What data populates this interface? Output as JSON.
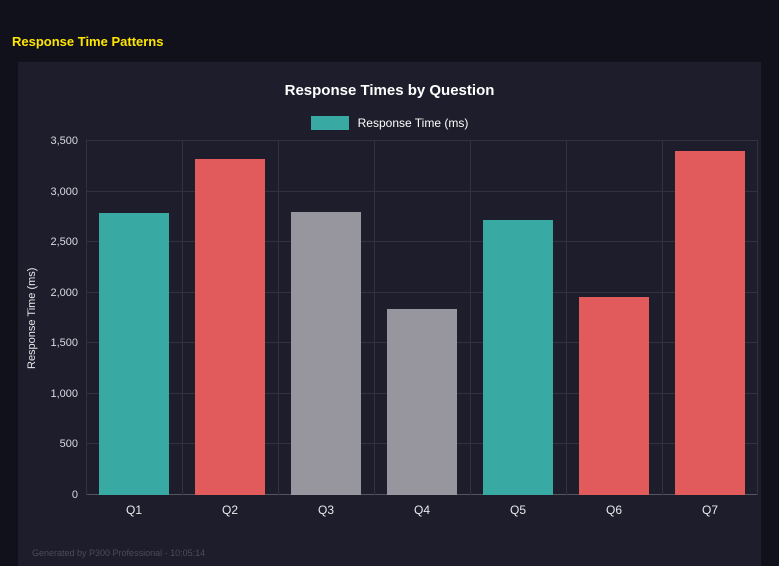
{
  "page": {
    "title": "Response Time Patterns",
    "footer": "Generated by P300 Professional - 10:05:14"
  },
  "chart_data": {
    "type": "bar",
    "title": "Response Times by Question",
    "legend": "Response Time (ms)",
    "xlabel": "",
    "ylabel": "Response Time (ms)",
    "categories": [
      "Q1",
      "Q2",
      "Q3",
      "Q4",
      "Q5",
      "Q6",
      "Q7"
    ],
    "values": [
      2790,
      3320,
      2800,
      1840,
      2720,
      1960,
      3400
    ],
    "bar_colors": [
      "#39a9a4",
      "#e25b5c",
      "#97969e",
      "#97969e",
      "#39a9a4",
      "#e25b5c",
      "#e25b5c"
    ],
    "ylim": [
      0,
      3500
    ],
    "yticks": [
      0,
      500,
      1000,
      1500,
      2000,
      2500,
      3000,
      3500
    ],
    "ytick_labels": [
      "0",
      "500",
      "1,000",
      "1,500",
      "2,000",
      "2,500",
      "3,000",
      "3,500"
    ],
    "grid": true,
    "legend_position": "top",
    "colors": {
      "accent_teal": "#39a9a4",
      "accent_red": "#e25b5c",
      "accent_gray": "#97969e",
      "title_yellow": "#ffe600",
      "panel_bg": "#1d1d2b",
      "page_bg": "#11111b"
    }
  }
}
